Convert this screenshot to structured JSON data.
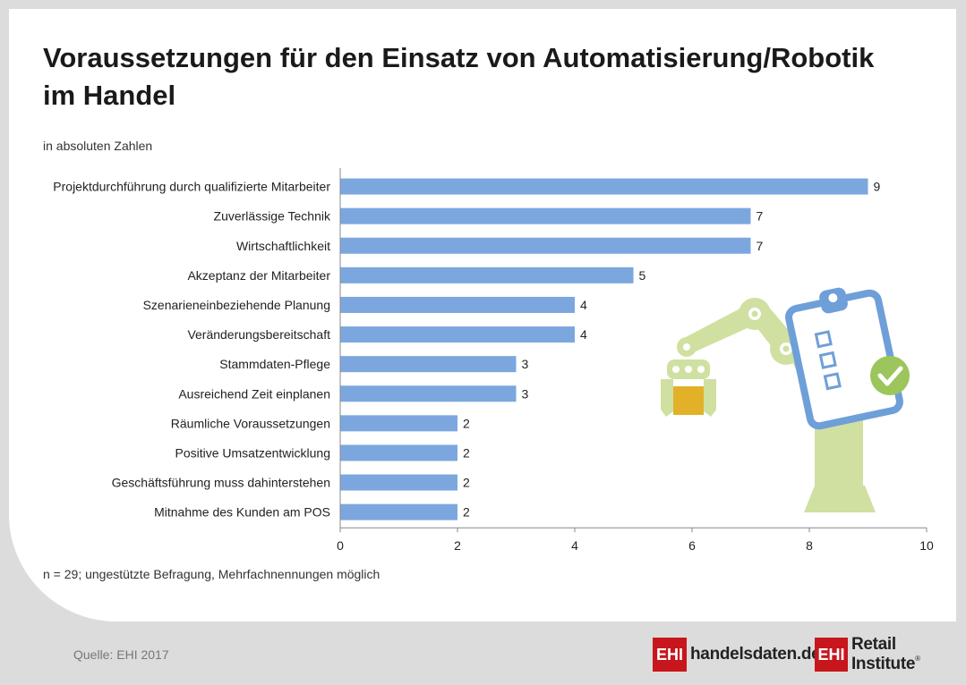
{
  "title": "Voraussetzungen für den Einsatz von Automatisierung/Robotik im Handel",
  "subtitle": "in absoluten Zahlen",
  "note": "n = 29; ungestützte Befragung, Mehrfachnennungen möglich",
  "source": "Quelle: EHI 2017",
  "logos": [
    {
      "box": "EHI",
      "text": "handelsdaten.de"
    },
    {
      "box": "EHI",
      "text": "Retail Institute",
      "mark": "®"
    }
  ],
  "colors": {
    "bar": "#7ba7de",
    "robot": "#cfe0a1",
    "clipboard": "#6f9fd8",
    "check": "#9cc55b",
    "box": "#e2b128"
  },
  "illustration": "robot-arm-with-clipboard-checklist",
  "chart_data": {
    "type": "bar",
    "orientation": "horizontal",
    "categories": [
      "Projektdurchführung durch qualifizierte Mitarbeiter",
      "Zuverlässige Technik",
      "Wirtschaftlichkeit",
      "Akzeptanz der Mitarbeiter",
      "Szenarieneinbeziehende Planung",
      "Veränderungsbereitschaft",
      "Stammdaten-Pflege",
      "Ausreichend Zeit einplanen",
      "Räumliche Voraussetzungen",
      "Positive Umsatzentwicklung",
      "Geschäftsführung muss dahinterstehen",
      "Mitnahme des Kunden am POS"
    ],
    "values": [
      9,
      7,
      7,
      5,
      4,
      4,
      3,
      3,
      2,
      2,
      2,
      2
    ],
    "xlim": [
      0,
      10
    ],
    "xticks": [
      0,
      2,
      4,
      6,
      8,
      10
    ],
    "grid": false,
    "data_labels": true
  }
}
